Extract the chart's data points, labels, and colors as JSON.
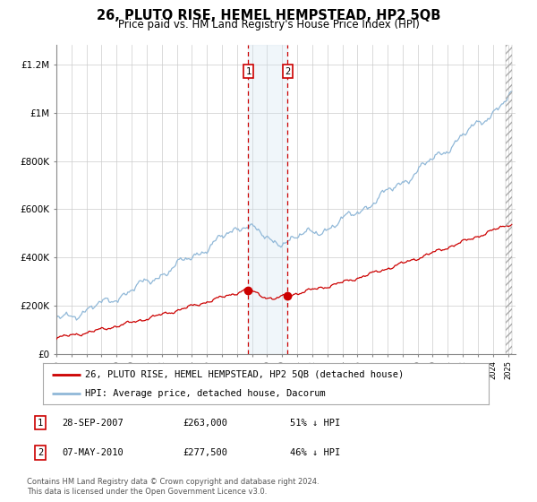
{
  "title": "26, PLUTO RISE, HEMEL HEMPSTEAD, HP2 5QB",
  "subtitle": "Price paid vs. HM Land Registry's House Price Index (HPI)",
  "ylim": [
    0,
    1280000
  ],
  "yticks": [
    0,
    200000,
    400000,
    600000,
    800000,
    1000000,
    1200000
  ],
  "ytick_labels": [
    "£0",
    "£200K",
    "£400K",
    "£600K",
    "£800K",
    "£1M",
    "£1.2M"
  ],
  "hpi_color": "#90b8d8",
  "price_color": "#cc0000",
  "shade_color": "#d0e4f0",
  "transaction1_date": 2007.747,
  "transaction1_price": 263000,
  "transaction2_date": 2010.368,
  "transaction2_price": 277500,
  "legend_line1": "26, PLUTO RISE, HEMEL HEMPSTEAD, HP2 5QB (detached house)",
  "legend_line2": "HPI: Average price, detached house, Dacorum",
  "table_rows": [
    {
      "label": "1",
      "date": "28-SEP-2007",
      "price": "£263,000",
      "pct": "51% ↓ HPI"
    },
    {
      "label": "2",
      "date": "07-MAY-2010",
      "price": "£277,500",
      "pct": "46% ↓ HPI"
    }
  ],
  "footnote": "Contains HM Land Registry data © Crown copyright and database right 2024.\nThis data is licensed under the Open Government Licence v3.0.",
  "background_color": "#ffffff",
  "grid_color": "#cccccc"
}
